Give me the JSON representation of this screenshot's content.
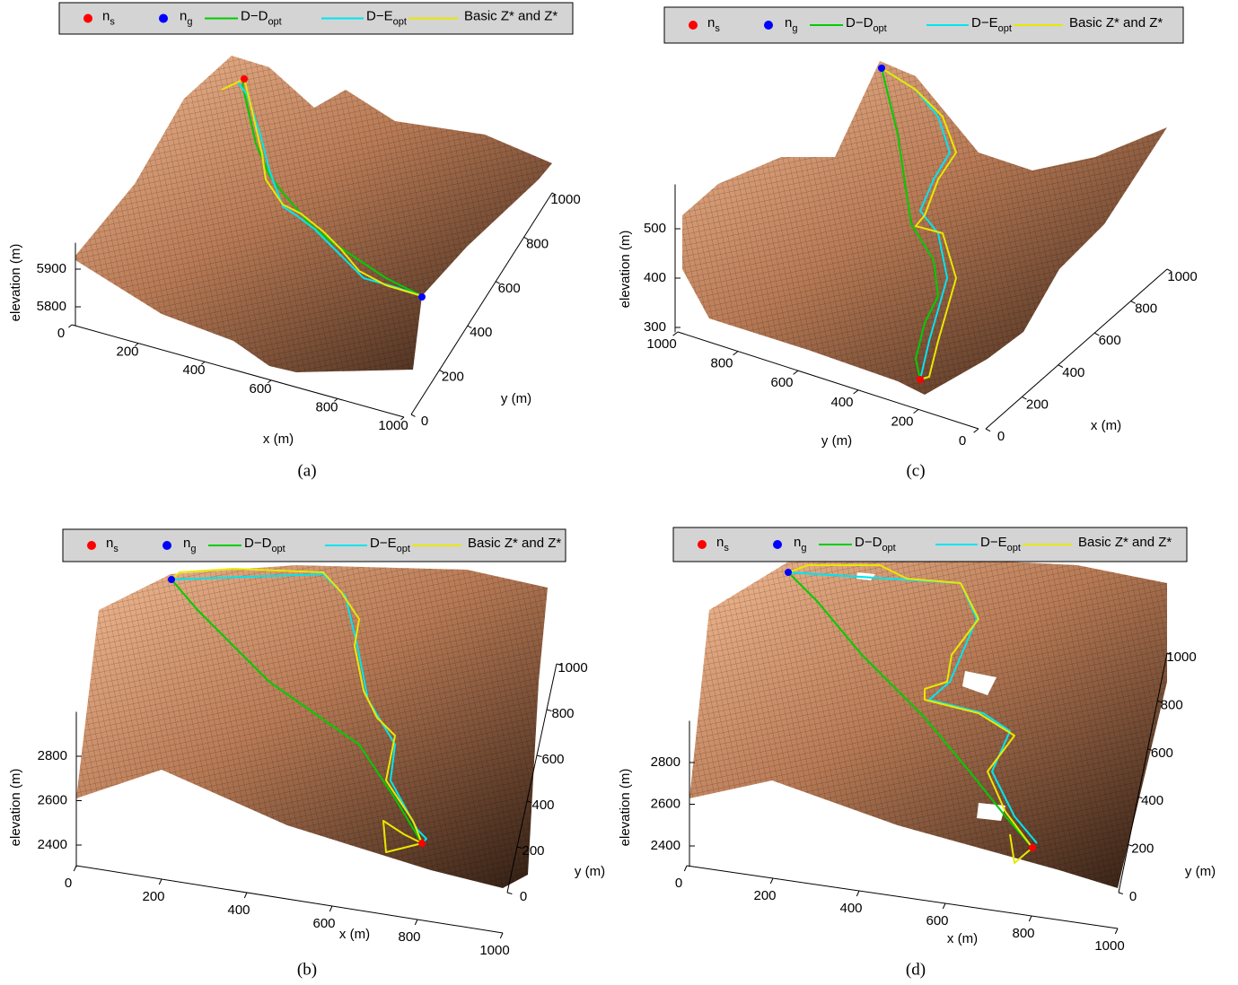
{
  "chart_data": [
    {
      "type": "surface",
      "caption": "(a)",
      "xlabel": "x (m)",
      "ylabel": "y (m)",
      "zlabel": "elevation (m)",
      "xlim": [
        0,
        1000
      ],
      "xticks": [
        0,
        200,
        400,
        600,
        800,
        1000
      ],
      "ylim": [
        0,
        1000
      ],
      "yticks": [
        0,
        200,
        400,
        600,
        800,
        1000
      ],
      "zlim": [
        5750,
        5970
      ],
      "zticks": [
        5800,
        5900
      ],
      "series": [
        {
          "name": [
            "n",
            "s"
          ],
          "color": "#ff0000",
          "style": "marker"
        },
        {
          "name": [
            "n",
            "g"
          ],
          "color": "#0000ff",
          "style": "marker"
        },
        {
          "name": [
            "D−D",
            "opt"
          ],
          "color": "#00cc00",
          "style": "line"
        },
        {
          "name": [
            "D−E",
            "opt"
          ],
          "color": "#00e5f0",
          "style": "line"
        },
        {
          "name": [
            "Basic Z* and Z*"
          ],
          "color": "#e8e800",
          "style": "line"
        }
      ]
    },
    {
      "type": "surface",
      "caption": "(b)",
      "xlabel": "x (m)",
      "ylabel": "y (m)",
      "zlabel": "elevation (m)",
      "xlim": [
        0,
        1000
      ],
      "xticks": [
        0,
        200,
        400,
        600,
        800,
        1000
      ],
      "ylim": [
        0,
        1000
      ],
      "yticks": [
        0,
        200,
        400,
        600,
        800,
        1000
      ],
      "zlim": [
        2300,
        3000
      ],
      "zticks": [
        2400,
        2600,
        2800
      ],
      "series": [
        {
          "name": [
            "n",
            "s"
          ],
          "color": "#ff0000",
          "style": "marker"
        },
        {
          "name": [
            "n",
            "g"
          ],
          "color": "#0000ff",
          "style": "marker"
        },
        {
          "name": [
            "D−D",
            "opt"
          ],
          "color": "#00cc00",
          "style": "line"
        },
        {
          "name": [
            "D−E",
            "opt"
          ],
          "color": "#00e5f0",
          "style": "line"
        },
        {
          "name": [
            "Basic Z* and Z*"
          ],
          "color": "#e8e800",
          "style": "line"
        }
      ]
    },
    {
      "type": "surface",
      "caption": "(c)",
      "xlabel": "x (m)",
      "ylabel": "y (m)",
      "zlabel": "elevation (m)",
      "xlim": [
        0,
        1000
      ],
      "xticks": [
        0,
        200,
        400,
        600,
        800,
        1000
      ],
      "ylim": [
        0,
        1000
      ],
      "yticks": [
        0,
        200,
        400,
        600,
        800,
        1000
      ],
      "zlim": [
        290,
        590
      ],
      "zticks": [
        300,
        400,
        500
      ],
      "series": [
        {
          "name": [
            "n",
            "s"
          ],
          "color": "#ff0000",
          "style": "marker"
        },
        {
          "name": [
            "n",
            "g"
          ],
          "color": "#0000ff",
          "style": "marker"
        },
        {
          "name": [
            "D−D",
            "opt"
          ],
          "color": "#00cc00",
          "style": "line"
        },
        {
          "name": [
            "D−E",
            "opt"
          ],
          "color": "#00e5f0",
          "style": "line"
        },
        {
          "name": [
            "Basic Z* and Z*"
          ],
          "color": "#e8e800",
          "style": "line"
        }
      ]
    },
    {
      "type": "surface",
      "caption": "(d)",
      "xlabel": "x (m)",
      "ylabel": "y (m)",
      "zlabel": "elevation (m)",
      "xlim": [
        0,
        1000
      ],
      "xticks": [
        0,
        200,
        400,
        600,
        800,
        1000
      ],
      "ylim": [
        0,
        1000
      ],
      "yticks": [
        0,
        200,
        400,
        600,
        800,
        1000
      ],
      "zlim": [
        2300,
        3000
      ],
      "zticks": [
        2400,
        2600,
        2800
      ],
      "series": [
        {
          "name": [
            "n",
            "s"
          ],
          "color": "#ff0000",
          "style": "marker"
        },
        {
          "name": [
            "n",
            "g"
          ],
          "color": "#0000ff",
          "style": "marker"
        },
        {
          "name": [
            "D−D",
            "opt"
          ],
          "color": "#00cc00",
          "style": "line"
        },
        {
          "name": [
            "D−E",
            "opt"
          ],
          "color": "#00e5f0",
          "style": "line"
        },
        {
          "name": [
            "Basic Z* and Z*"
          ],
          "color": "#e8e800",
          "style": "line"
        }
      ]
    }
  ]
}
